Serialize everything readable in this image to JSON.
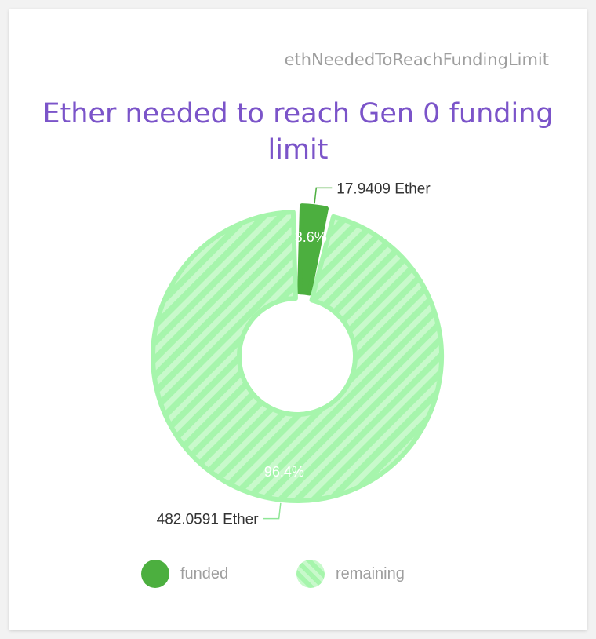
{
  "card": {
    "id_label": "ethNeededToReachFundingLimit"
  },
  "colors": {
    "title": "#7b54c9",
    "funded": "#4caf3f",
    "remaining": "#a6f5ac",
    "remaining_stripe": "#c8f9cb"
  },
  "chart_data": {
    "type": "pie",
    "title": "Ether needed to reach Gen 0 funding limit",
    "donut": true,
    "slices": [
      {
        "name": "funded",
        "value": 17.9409,
        "value_label": "17.9409 Ether",
        "percent_label": "3.6%",
        "color": "#4caf3f",
        "pattern": "solid"
      },
      {
        "name": "remaining",
        "value": 482.0591,
        "value_label": "482.0591 Ether",
        "percent_label": "96.4%",
        "color": "#a6f5ac",
        "pattern": "striped"
      }
    ],
    "legend": {
      "position": "bottom",
      "items": [
        "funded",
        "remaining"
      ]
    }
  }
}
